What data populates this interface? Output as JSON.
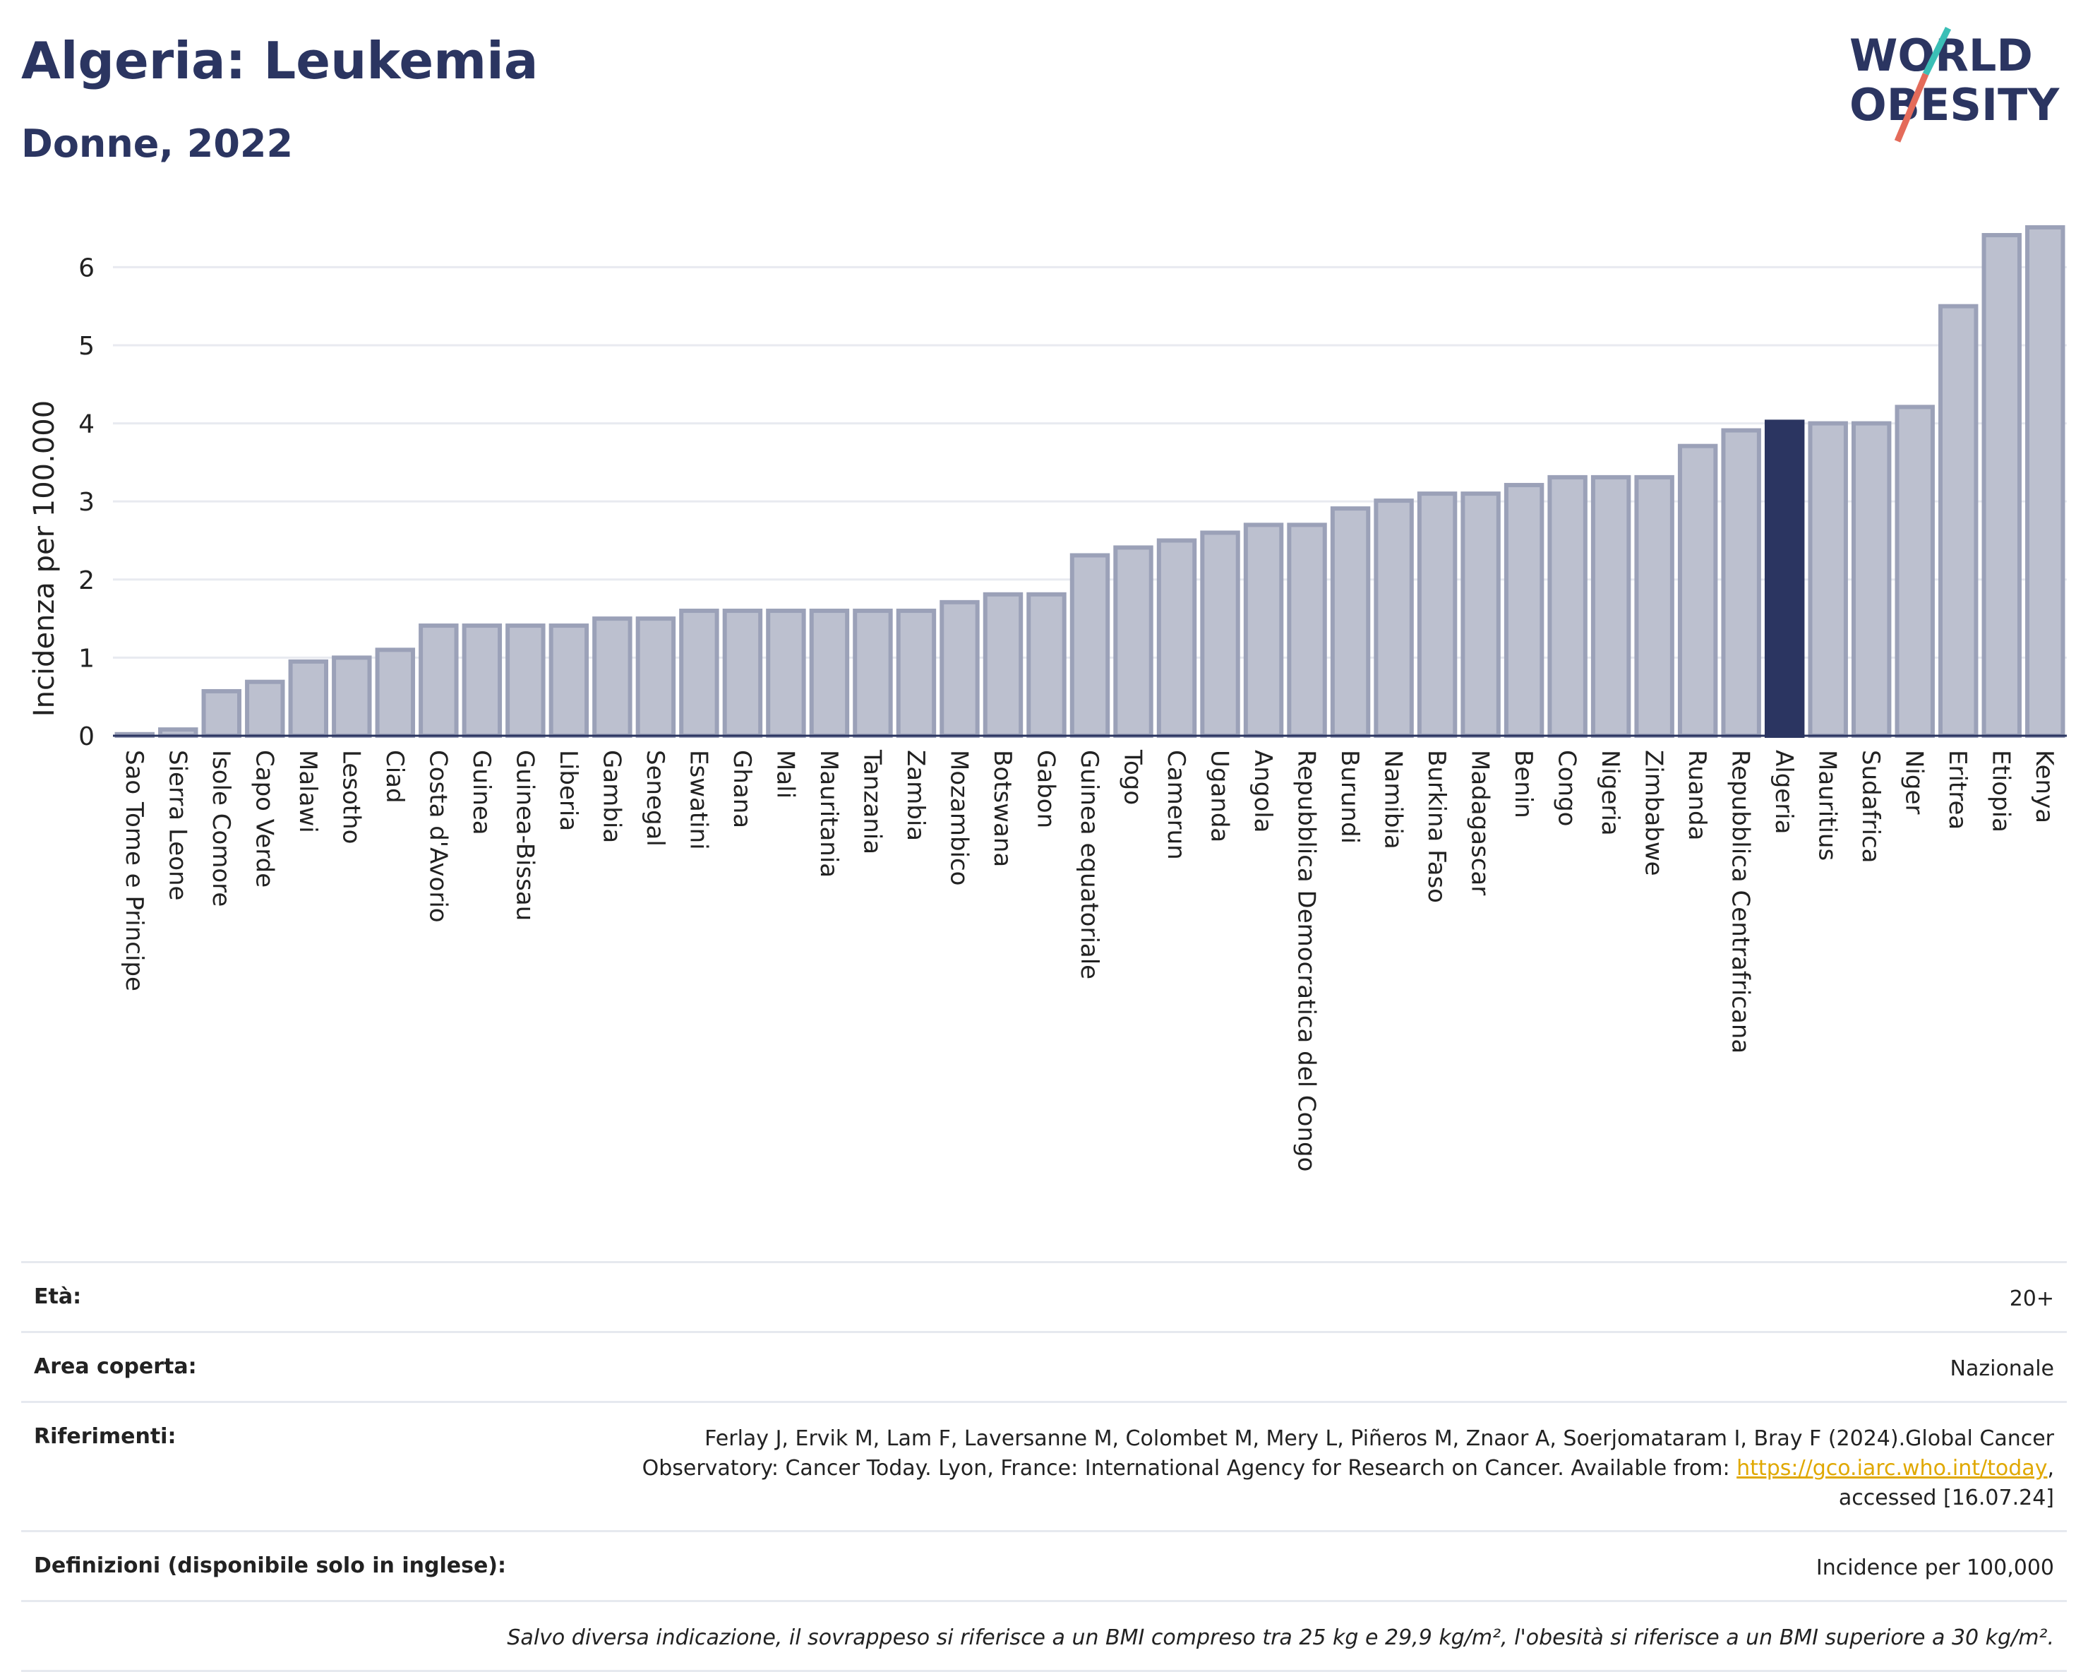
{
  "header": {
    "title": "Algeria: Leukemia",
    "subtitle": "Donne, 2022"
  },
  "logo": {
    "line1": "WORLD",
    "line2": "OBESITY",
    "colors": {
      "text": "#2b3561",
      "slash_teal": "#3bbfb6",
      "slash_red": "#e46b5a"
    }
  },
  "colors": {
    "bar_fill": "#bcc0cf",
    "bar_stroke": "#9ba1b8",
    "highlight": "#2b3561",
    "grid": "#e8eaf0",
    "axis": "#2b3561"
  },
  "chart_data": {
    "type": "bar",
    "ylabel": "Incidenza per 100.000",
    "ylim": [
      0,
      6.6
    ],
    "yticks": [
      0,
      1,
      2,
      3,
      4,
      5,
      6
    ],
    "grid": true,
    "highlight": "Algeria",
    "categories": [
      "Sao Tome e Principe",
      "Sierra Leone",
      "Isole Comore",
      "Capo Verde",
      "Malawi",
      "Lesotho",
      "Ciad",
      "Costa d'Avorio",
      "Guinea",
      "Guinea-Bissau",
      "Liberia",
      "Gambia",
      "Senegal",
      "Eswatini",
      "Ghana",
      "Mali",
      "Mauritania",
      "Tanzania",
      "Zambia",
      "Mozambico",
      "Botswana",
      "Gabon",
      "Guinea equatoriale",
      "Togo",
      "Camerun",
      "Uganda",
      "Angola",
      "Repubblica Democratica del Congo",
      "Burundi",
      "Namibia",
      "Burkina Faso",
      "Madagascar",
      "Benin",
      "Congo",
      "Nigeria",
      "Zimbabwe",
      "Ruanda",
      "Repubblica Centrafricana",
      "Algeria",
      "Mauritius",
      "Sudafrica",
      "Niger",
      "Eritrea",
      "Etiopia",
      "Kenya"
    ],
    "values": [
      0.02,
      0.08,
      0.57,
      0.69,
      0.95,
      1.0,
      1.1,
      1.41,
      1.41,
      1.41,
      1.41,
      1.5,
      1.5,
      1.6,
      1.6,
      1.6,
      1.6,
      1.6,
      1.6,
      1.71,
      1.81,
      1.81,
      2.31,
      2.41,
      2.5,
      2.6,
      2.7,
      2.7,
      2.91,
      3.01,
      3.1,
      3.1,
      3.21,
      3.31,
      3.31,
      3.31,
      3.71,
      3.91,
      4.02,
      4.0,
      4.0,
      4.21,
      5.5,
      6.41,
      6.51
    ]
  },
  "meta": {
    "eta_label": "Età:",
    "eta_value": "20+",
    "area_label": "Area coperta:",
    "area_value": "Nazionale",
    "rif_label": "Riferimenti:",
    "rif_line1": "Ferlay J, Ervik M, Lam F, Laversanne M, Colombet M, Mery L, Piñeros M, Znaor A, Soerjomataram I, Bray F (2024).Global Cancer",
    "rif_line2": "Observatory: Cancer Today. Lyon, France: International Agency for Research on Cancer. Available from: ",
    "rif_link": "https://gco.iarc.who.int/today",
    "rif_line2_end": ",",
    "rif_line3": "accessed [16.07.24]",
    "def_label": "Definizioni (disponibile solo in inglese):",
    "def_value": "Incidence per 100,000",
    "note": "Salvo diversa indicazione, il sovrappeso si riferisce a un BMI compreso tra 25 kg e 29,9 kg/m², l'obesità si riferisce a un BMI superiore a 30 kg/m²."
  }
}
